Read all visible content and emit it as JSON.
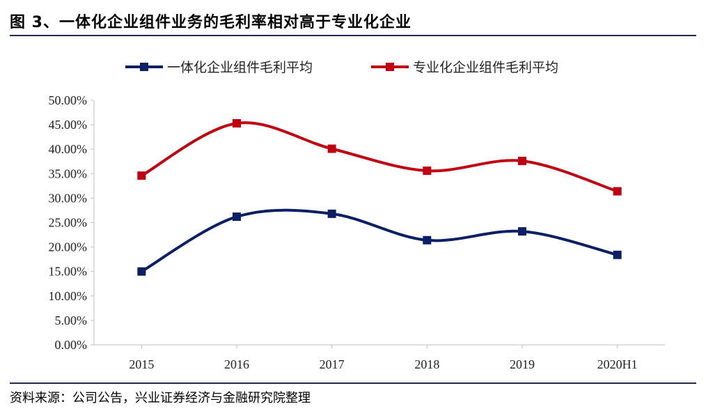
{
  "figure": {
    "title": "图 3、一体化企业组件业务的毛利率相对高于专业化企业",
    "source": "资料来源：公司公告，兴业证券经济与金融研究院整理"
  },
  "chart_data": {
    "type": "line",
    "categories": [
      "2015",
      "2016",
      "2017",
      "2018",
      "2019",
      "2020H1"
    ],
    "series": [
      {
        "name": "一体化企业组件毛利平均",
        "color": "#0b1f66",
        "values": [
          15.0,
          26.2,
          26.8,
          21.4,
          23.2,
          18.4
        ]
      },
      {
        "name": "专业化企业组件毛利平均",
        "color": "#c00010",
        "values": [
          34.6,
          45.3,
          40.1,
          35.6,
          37.6,
          31.4
        ]
      }
    ],
    "ylim": [
      0,
      50
    ],
    "yticks": [
      "0.00%",
      "5.00%",
      "10.00%",
      "15.00%",
      "20.00%",
      "25.00%",
      "30.00%",
      "35.00%",
      "40.00%",
      "45.00%",
      "50.00%"
    ],
    "legend_position": "top-center",
    "grid": false,
    "smooth": true
  }
}
